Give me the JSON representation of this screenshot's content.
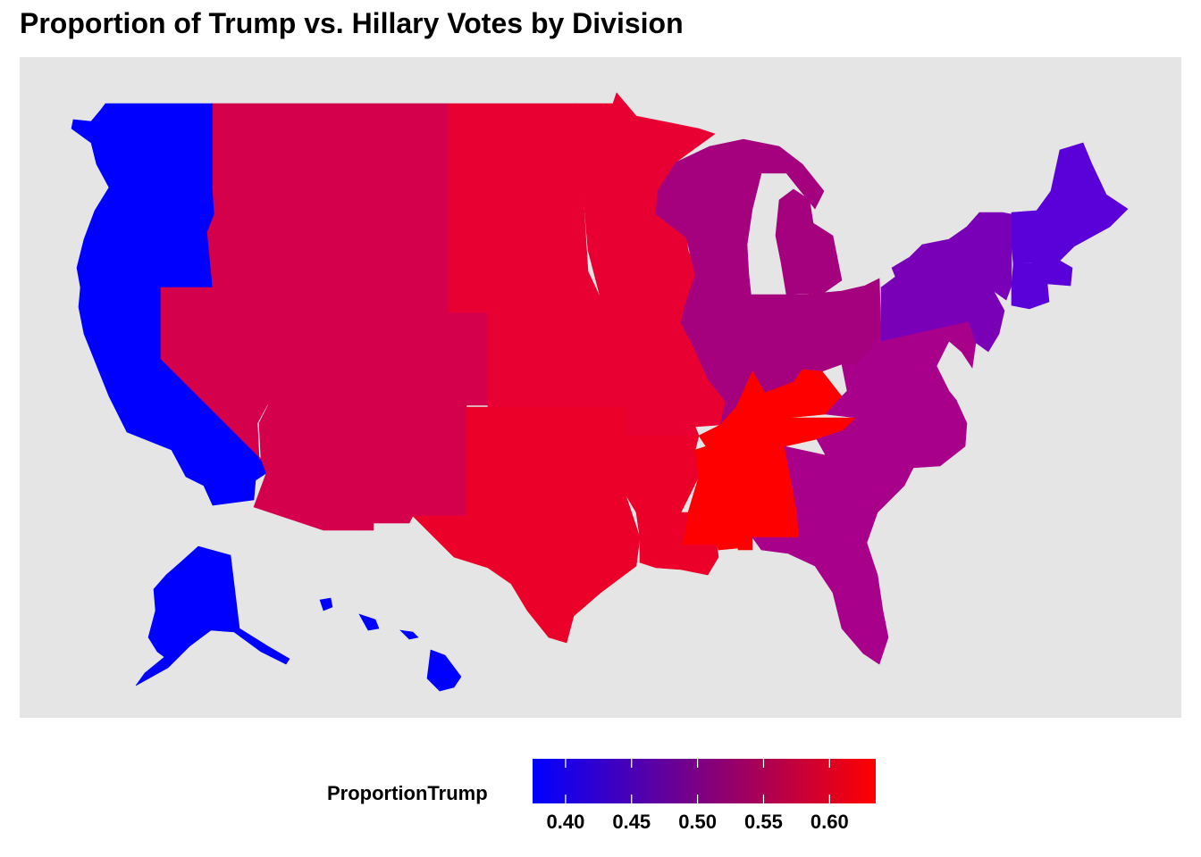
{
  "title": "Proportion of Trump vs. Hillary Votes by Division",
  "legend": {
    "title": "ProportionTrump",
    "min": 0.375,
    "max": 0.635,
    "low_color": "#0000ff",
    "high_color": "#ff0000",
    "ticks": [
      {
        "value": 0.4,
        "label": "0.40"
      },
      {
        "value": 0.45,
        "label": "0.45"
      },
      {
        "value": 0.5,
        "label": "0.50"
      },
      {
        "value": 0.55,
        "label": "0.55"
      },
      {
        "value": 0.6,
        "label": "0.60"
      }
    ]
  },
  "background_color": "#e5e5e5",
  "map_data": {
    "type": "choropleth",
    "variable": "ProportionTrump",
    "divisions": [
      {
        "name": "Pacific",
        "value": 0.375,
        "color": "#0000ff"
      },
      {
        "name": "Mountain",
        "value": 0.575,
        "color": "#d4004c"
      },
      {
        "name": "West North Central",
        "value": 0.6,
        "color": "#e80032"
      },
      {
        "name": "West South Central",
        "value": 0.605,
        "color": "#ea0028"
      },
      {
        "name": "East North Central",
        "value": 0.51,
        "color": "#a5007e"
      },
      {
        "name": "East South Central",
        "value": 0.635,
        "color": "#ff0000"
      },
      {
        "name": "South Atlantic",
        "value": 0.505,
        "color": "#a8008a"
      },
      {
        "name": "Middle Atlantic",
        "value": 0.45,
        "color": "#7a00b8"
      },
      {
        "name": "New England",
        "value": 0.41,
        "color": "#5a00d8"
      }
    ]
  }
}
